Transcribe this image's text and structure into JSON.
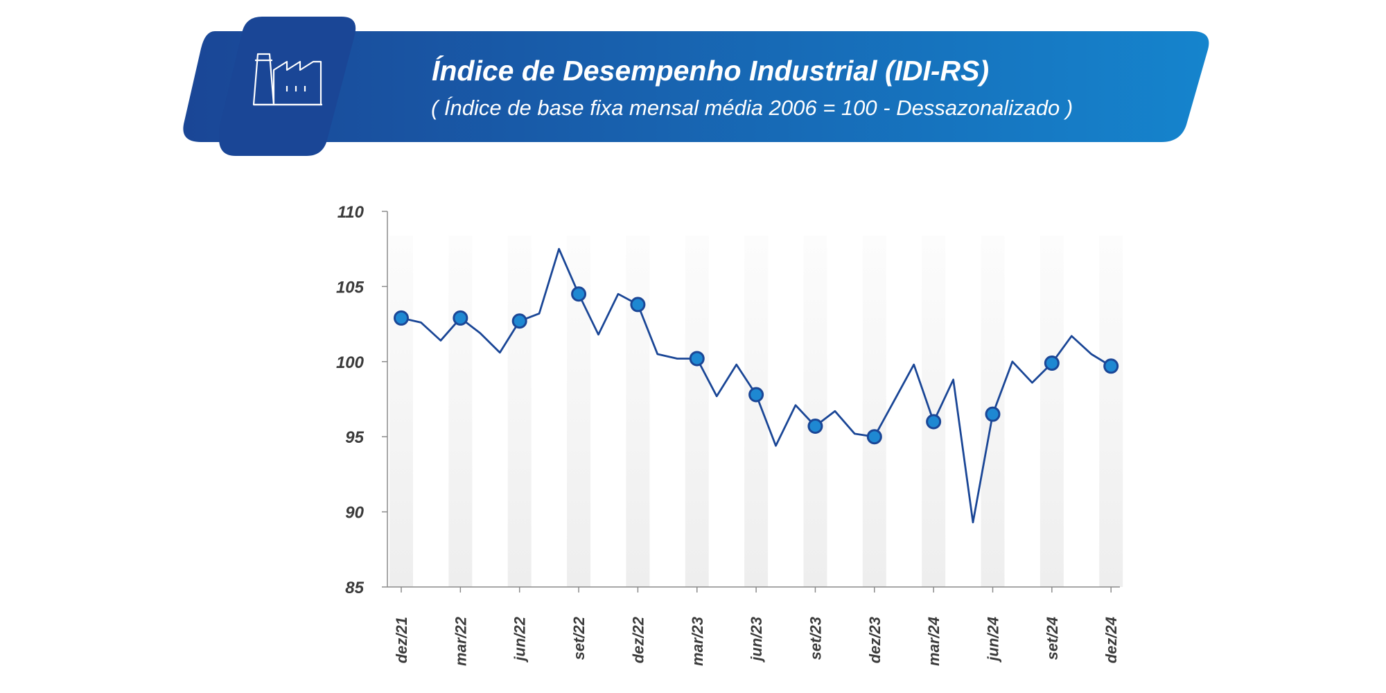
{
  "header": {
    "title": "Índice de Desempenho Industrial (IDI-RS)",
    "subtitle": "( Índice de base fixa mensal média 2006 = 100 - Dessazonalizado )",
    "icon": "factory-icon"
  },
  "colors": {
    "banner_dark": "#1a4696",
    "banner_light": "#1584cd",
    "line": "#1a4696",
    "marker_fill": "#1e88d2",
    "marker_stroke": "#1a4696",
    "stripe": "#ebebeb",
    "axis_text": "#3a3a3a"
  },
  "chart_data": {
    "type": "line",
    "x": [
      "dez/21",
      "jan/22",
      "fev/22",
      "mar/22",
      "abr/22",
      "mai/22",
      "jun/22",
      "jul/22",
      "ago/22",
      "set/22",
      "out/22",
      "nov/22",
      "dez/22",
      "jan/23",
      "fev/23",
      "mar/23",
      "abr/23",
      "mai/23",
      "jun/23",
      "jul/23",
      "ago/23",
      "set/23",
      "out/23",
      "nov/23",
      "dez/23",
      "jan/24",
      "fev/24",
      "mar/24",
      "abr/24",
      "mai/24",
      "jun/24",
      "jul/24",
      "ago/24",
      "set/24",
      "out/24",
      "nov/24",
      "dez/24"
    ],
    "values": [
      102.9,
      102.6,
      101.4,
      102.9,
      101.9,
      100.6,
      102.7,
      103.2,
      107.5,
      104.5,
      101.8,
      104.5,
      103.8,
      100.5,
      100.2,
      100.2,
      97.7,
      99.8,
      97.8,
      94.4,
      97.1,
      95.7,
      96.7,
      95.2,
      95.0,
      97.4,
      99.8,
      96.0,
      98.8,
      89.3,
      96.5,
      100.0,
      98.6,
      99.9,
      101.7,
      100.5,
      99.7
    ],
    "marker_every": 3,
    "x_tick_labels": [
      "dez/21",
      "mar/22",
      "jun/22",
      "set/22",
      "dez/22",
      "mar/23",
      "jun/23",
      "set/23",
      "dez/23",
      "mar/24",
      "jun/24",
      "set/24",
      "dez/24"
    ],
    "y_ticks": [
      85,
      90,
      95,
      100,
      105,
      110
    ],
    "ylim": [
      85,
      110
    ],
    "grid": false,
    "xlabel": "",
    "ylabel": ""
  }
}
